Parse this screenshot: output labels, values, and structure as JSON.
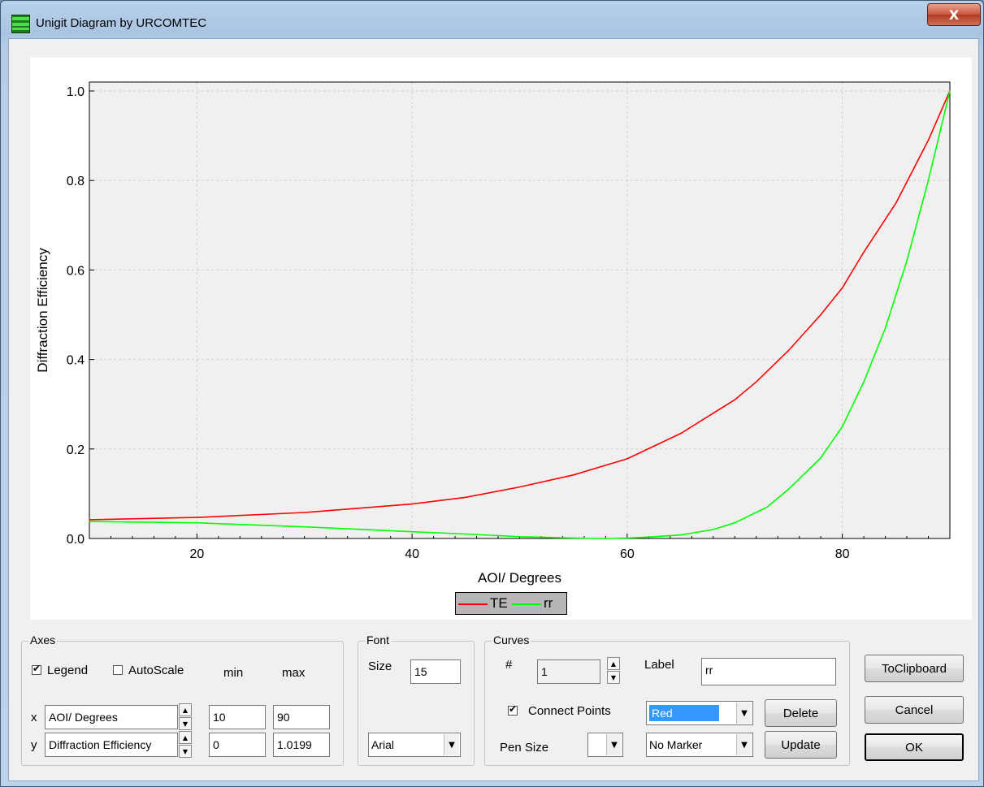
{
  "window": {
    "title": "Unigit Diagram by URCOMTEC",
    "close_label": "X"
  },
  "chart_data": {
    "type": "line",
    "title": "",
    "xlabel": "AOI/ Degrees",
    "ylabel": "Diffraction Efficiency",
    "xlim": [
      10,
      90
    ],
    "ylim": [
      0,
      1.02
    ],
    "x_ticks": [
      20,
      40,
      60,
      80
    ],
    "y_ticks": [
      0.0,
      0.2,
      0.4,
      0.6,
      0.8,
      1.0
    ],
    "x_tick_labels": [
      "20",
      "40",
      "60",
      "80"
    ],
    "y_tick_labels": [
      "0.0",
      "0.2",
      "0.4",
      "0.6",
      "0.8",
      "1.0"
    ],
    "grid": true,
    "legend_position": "bottom-center",
    "series": [
      {
        "name": "TE",
        "color": "#ff0000",
        "x": [
          10,
          20,
          30,
          40,
          45,
          50,
          55,
          60,
          65,
          70,
          72,
          75,
          78,
          80,
          82,
          85,
          88,
          90
        ],
        "y": [
          0.042,
          0.047,
          0.058,
          0.077,
          0.092,
          0.115,
          0.142,
          0.178,
          0.235,
          0.31,
          0.35,
          0.42,
          0.5,
          0.56,
          0.64,
          0.75,
          0.89,
          1.0
        ]
      },
      {
        "name": "rr",
        "color": "#00ff00",
        "x": [
          10,
          20,
          30,
          40,
          45,
          50,
          55,
          58,
          60,
          62,
          65,
          68,
          70,
          73,
          75,
          78,
          80,
          82,
          84,
          86,
          88,
          90
        ],
        "y": [
          0.038,
          0.035,
          0.026,
          0.015,
          0.01,
          0.004,
          0.001,
          0.0,
          0.001,
          0.003,
          0.008,
          0.02,
          0.035,
          0.07,
          0.11,
          0.18,
          0.25,
          0.35,
          0.47,
          0.62,
          0.8,
          1.0
        ]
      }
    ]
  },
  "axes_group": {
    "title": "Axes",
    "legend_label": "Legend",
    "legend_checked": true,
    "autoscale_label": "AutoScale",
    "autoscale_checked": false,
    "min_label": "min",
    "max_label": "max",
    "x_label": "x",
    "y_label": "y",
    "x_title": "AOI/ Degrees",
    "x_min": "10",
    "x_max": "90",
    "y_title": "Diffraction Efficiency",
    "y_min": "0",
    "y_max": "1.0199"
  },
  "font_group": {
    "title": "Font",
    "size_label": "Size",
    "size_value": "15",
    "font_name": "Arial"
  },
  "curves_group": {
    "title": "Curves",
    "number_label": "#",
    "number_value": "1",
    "label_label": "Label",
    "label_value": "rr",
    "connect_points_label": "Connect Points",
    "connect_points_checked": true,
    "color_value": "Red",
    "delete_label": "Delete",
    "pen_size_label": "Pen Size",
    "pen_size_value": "",
    "marker_value": "No Marker",
    "update_label": "Update"
  },
  "buttons": {
    "to_clipboard": "ToClipboard",
    "cancel": "Cancel",
    "ok": "OK"
  },
  "spin_icons": {
    "up": "▲",
    "down": "▼"
  },
  "dropdown_icon": "▼"
}
